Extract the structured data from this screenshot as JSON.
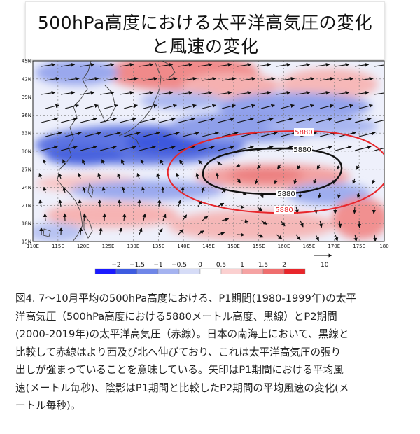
{
  "title": {
    "line1": "500hPa高度における太平洋高気圧の変化",
    "line2": "と風速の変化"
  },
  "map": {
    "lon_ticks": [
      "110E",
      "115E",
      "120E",
      "125E",
      "130E",
      "135E",
      "140E",
      "145E",
      "150E",
      "155E",
      "160E",
      "165E",
      "170E",
      "175E",
      "180"
    ],
    "lat_ticks": [
      "45N",
      "42N",
      "39N",
      "36N",
      "33N",
      "30N",
      "27N",
      "24N",
      "21N",
      "18N",
      "15N"
    ],
    "contour_labels": {
      "red_top": "5880",
      "black_top": "5880",
      "black_bottom": "5880",
      "red_bottom": "5880"
    },
    "contour_colors": {
      "p1": "#111111",
      "p2": "#e8262b"
    },
    "reference_vector_label": "10"
  },
  "colorbar": {
    "tick_labels": [
      "−2",
      "−1.5",
      "−1",
      "−0.5",
      "0",
      "0.5",
      "1",
      "1.5",
      "2"
    ],
    "colors": [
      "#1a1aff",
      "#3d5be0",
      "#6f86e8",
      "#a5b3f0",
      "#d6dcf7",
      "#ffffff",
      "#fbd0d0",
      "#f5a3a3",
      "#ef6e6e",
      "#e8262b"
    ]
  },
  "caption": {
    "line1": "図4. 7〜10月平均の500hPa高度における、P1期間(1980-1999年)の太平",
    "line2": "洋高気圧（500hPa高度における5880メートル高度、黒線）とP2期間",
    "line3": "(2000-2019年)の太平洋高気圧（赤線）。日本の南海上において、黒線と",
    "line4": "比較して赤線はより西及び北へ伸びており、これは太平洋高気圧の張り",
    "line5": "出しが強まっていることを意味している。矢印はP1期間における平均風",
    "line6": "速(メートル毎秒)、陰影はP1期間と比較したP2期間の平均風速の変化(メ",
    "line7": "ートル毎秒)。"
  }
}
